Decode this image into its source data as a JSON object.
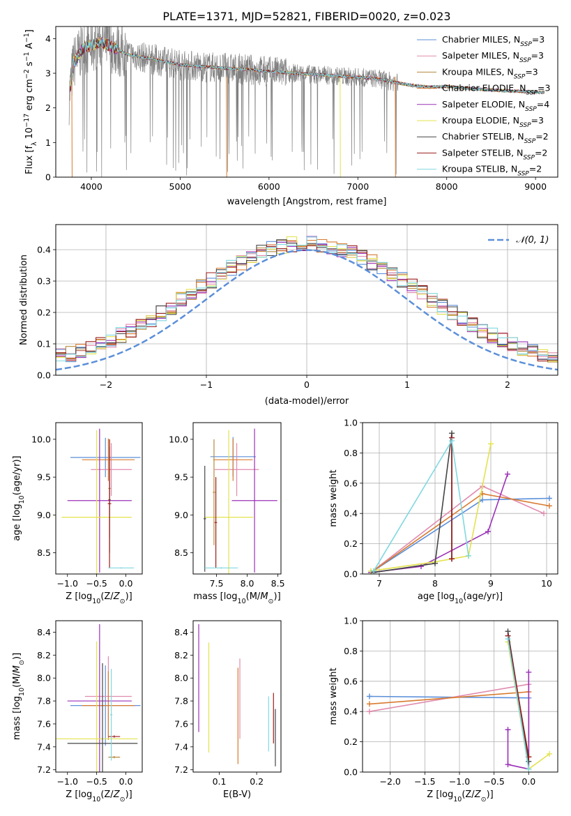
{
  "figure": {
    "title": "PLATE=1371, MJD=52821, FIBERID=0020, z=0.023"
  },
  "colors": {
    "Chabrier MILES": "#5b8fd9",
    "Salpeter MILES": "#e08aae",
    "Kroupa MILES": "#b58a3e",
    "Chabrier ELODIE": "#d87a2e",
    "Salpeter ELODIE": "#9b30b8",
    "Kroupa ELODIE": "#e3e24e",
    "Chabrier STELIB": "#444444",
    "Salpeter STELIB": "#9b1c1c",
    "Kroupa STELIB": "#7fd8e0",
    "data": "#808080",
    "normal_curve": "#5b8fd9"
  },
  "chart_data": [
    {
      "id": "spectrum",
      "type": "line",
      "xlabel": "wavelength [Angstrom, rest frame]",
      "ylabel": "Flux [f_λ 10^-17 erg cm^-2 s^-1 A^-1]",
      "xlim": [
        3600,
        9250
      ],
      "ylim": [
        0,
        4.35
      ],
      "xticks": [
        4000,
        5000,
        6000,
        7000,
        8000,
        9000
      ],
      "yticks": [
        0,
        1,
        2,
        3,
        4
      ],
      "legend_position": "top-right",
      "legend": [
        {
          "model": "Chabrier MILES",
          "nssp": "3"
        },
        {
          "model": "Salpeter MILES",
          "nssp": "3"
        },
        {
          "model": "Kroupa MILES",
          "nssp": "3"
        },
        {
          "model": "Chabrier ELODIE",
          "nssp": "3"
        },
        {
          "model": "Salpeter ELODIE",
          "nssp": "4"
        },
        {
          "model": "Kroupa ELODIE",
          "nssp": "3"
        },
        {
          "model": "Chabrier STELIB",
          "nssp": "2"
        },
        {
          "model": "Salpeter STELIB",
          "nssp": "2"
        },
        {
          "model": "Kroupa STELIB",
          "nssp": "2"
        }
      ],
      "continuum": {
        "x": [
          3750,
          3800,
          3900,
          4000,
          4100,
          4200,
          4400,
          4600,
          4800,
          5000,
          5200,
          5500,
          5800,
          6000,
          6300,
          6600,
          6900,
          7200,
          7400,
          7600,
          7800,
          8000,
          8300,
          8600,
          8800,
          9000,
          9100
        ],
        "y": [
          2.3,
          3.3,
          3.7,
          3.8,
          3.9,
          3.8,
          3.55,
          3.45,
          3.35,
          3.25,
          3.2,
          3.15,
          3.1,
          3.05,
          3.0,
          2.95,
          2.9,
          2.85,
          2.75,
          2.65,
          2.6,
          2.62,
          2.55,
          2.5,
          2.48,
          2.45,
          2.45
        ]
      }
    },
    {
      "id": "residuals",
      "type": "area",
      "xlabel": "(data-model)/error",
      "ylabel": "Normed distribution",
      "xlim": [
        -2.5,
        2.5
      ],
      "ylim": [
        0,
        0.48
      ],
      "xticks": [
        -2,
        -1,
        0,
        1,
        2
      ],
      "yticks": [
        0.0,
        0.1,
        0.2,
        0.3,
        0.4
      ],
      "grid": true,
      "legend_position": "top-right",
      "legend": "𝒩(0, 1)",
      "bin_width": 0.1,
      "normal": {
        "mean": 0,
        "sigma": 1
      }
    },
    {
      "id": "age-vs-z",
      "type": "scatter",
      "xlabel": "Z [log10(Z/Z⊙)]",
      "ylabel": "age [log10(age/yr)]",
      "xlim": [
        -1.2,
        0.28
      ],
      "ylim": [
        8.22,
        10.22
      ],
      "xticks": [
        -1.0,
        -0.5,
        0.0
      ],
      "yticks": [
        8.5,
        9.0,
        9.5,
        10.0
      ],
      "points": [
        {
          "model": "Chabrier MILES",
          "x": -0.35,
          "y": 9.76,
          "xerr": 0.6,
          "yerr": 0.26
        },
        {
          "model": "Salpeter MILES",
          "x": -0.25,
          "y": 9.6,
          "xerr": 0.35,
          "yerr": 0.35
        },
        {
          "model": "Chabrier ELODIE",
          "x": -0.3,
          "y": 9.73,
          "xerr": 0.45,
          "yerr": 0.28
        },
        {
          "model": "Salpeter ELODIE",
          "x": -0.45,
          "y": 9.19,
          "xerr": 0.55,
          "yerr": 0.95
        },
        {
          "model": "Kroupa ELODIE",
          "x": -0.5,
          "y": 8.97,
          "xerr": 0.6,
          "yerr": 1.15
        },
        {
          "model": "Kroupa MILES",
          "x": -0.28,
          "y": 9.35,
          "xerr": 0.02,
          "yerr": 0.65
        },
        {
          "model": "Chabrier STELIB",
          "x": -0.28,
          "y": 9.2,
          "xerr": 0.02,
          "yerr": 0.7
        },
        {
          "model": "Salpeter STELIB",
          "x": -0.28,
          "y": 9.15,
          "xerr": 0.03,
          "yerr": 0.85
        },
        {
          "model": "Kroupa STELIB",
          "x": -0.08,
          "y": 8.3,
          "xerr": 0.22,
          "yerr": 0.01
        }
      ]
    },
    {
      "id": "age-vs-mass",
      "type": "scatter",
      "xlabel": "mass [log10(M/M⊙)]",
      "ylabel": "",
      "xlim": [
        7.12,
        8.55
      ],
      "ylim": [
        8.22,
        10.22
      ],
      "xticks": [
        7.5,
        8.0,
        8.5
      ],
      "yticks": [
        8.5,
        9.0,
        9.5,
        10.0
      ],
      "points": [
        {
          "model": "Chabrier MILES",
          "x": 7.77,
          "y": 9.77,
          "xerr": 0.37,
          "yerr": 0.26
        },
        {
          "model": "Salpeter MILES",
          "x": 7.83,
          "y": 9.6,
          "xerr": 0.36,
          "yerr": 0.35
        },
        {
          "model": "Chabrier ELODIE",
          "x": 7.77,
          "y": 9.73,
          "xerr": 0.32,
          "yerr": 0.28
        },
        {
          "model": "Salpeter ELODIE",
          "x": 8.12,
          "y": 9.19,
          "xerr": 0.37,
          "yerr": 0.95
        },
        {
          "model": "Kroupa ELODIE",
          "x": 7.7,
          "y": 8.97,
          "xerr": 0.4,
          "yerr": 1.15
        },
        {
          "model": "Kroupa MILES",
          "x": 7.46,
          "y": 9.3,
          "xerr": 0.02,
          "yerr": 0.7
        },
        {
          "model": "Chabrier STELIB",
          "x": 7.31,
          "y": 8.95,
          "xerr": 0.02,
          "yerr": 0.7
        },
        {
          "model": "Salpeter STELIB",
          "x": 7.49,
          "y": 8.9,
          "xerr": 0.02,
          "yerr": 0.6
        },
        {
          "model": "Kroupa STELIB",
          "x": 7.58,
          "y": 8.3,
          "xerr": 0.27,
          "yerr": 0.01
        }
      ]
    },
    {
      "id": "weight-vs-age",
      "type": "line",
      "xlabel": "age [log10(age/yr)]",
      "ylabel": "mass weight",
      "xlim": [
        6.7,
        10.2
      ],
      "ylim": [
        0,
        1.0
      ],
      "xticks": [
        7,
        8,
        9,
        10
      ],
      "yticks": [
        0.0,
        0.2,
        0.4,
        0.6,
        0.8,
        1.0
      ],
      "grid": true,
      "series": [
        {
          "model": "Chabrier MILES",
          "x": [
            6.85,
            8.85,
            10.05
          ],
          "y": [
            0.01,
            0.49,
            0.5
          ]
        },
        {
          "model": "Salpeter MILES",
          "x": [
            6.85,
            8.85,
            9.95
          ],
          "y": [
            0.01,
            0.58,
            0.4
          ]
        },
        {
          "model": "Chabrier ELODIE",
          "x": [
            6.85,
            8.85,
            10.05
          ],
          "y": [
            0.01,
            0.53,
            0.45
          ]
        },
        {
          "model": "Salpeter ELODIE",
          "x": [
            6.85,
            7.75,
            8.95,
            9.3
          ],
          "y": [
            0.01,
            0.05,
            0.28,
            0.66
          ]
        },
        {
          "model": "Kroupa ELODIE",
          "x": [
            6.85,
            8.0,
            8.6,
            9.0
          ],
          "y": [
            0.02,
            0.08,
            0.12,
            0.86
          ]
        },
        {
          "model": "Chabrier STELIB",
          "x": [
            6.9,
            8.0,
            8.3,
            8.3
          ],
          "y": [
            0.01,
            0.07,
            0.93,
            0.1
          ]
        },
        {
          "model": "Salpeter STELIB",
          "x": [
            8.3,
            8.3
          ],
          "y": [
            0.9,
            0.1
          ]
        },
        {
          "model": "Kroupa STELIB",
          "x": [
            6.9,
            8.3,
            8.6
          ],
          "y": [
            0.02,
            0.88,
            0.12
          ]
        }
      ]
    },
    {
      "id": "mass-vs-z",
      "type": "scatter",
      "xlabel": "Z [log10(Z/Z⊙)]",
      "ylabel": "mass [log10(M/M⊙)]",
      "xlim": [
        -1.2,
        0.28
      ],
      "ylim": [
        7.18,
        8.5
      ],
      "xticks": [
        -1.0,
        -0.5,
        0.0
      ],
      "yticks": [
        7.2,
        7.4,
        7.6,
        7.8,
        8.0,
        8.2,
        8.4
      ],
      "points": [
        {
          "model": "Chabrier MILES",
          "x": -0.35,
          "y": 7.76,
          "xerr": 0.6,
          "yerr": 0.35
        },
        {
          "model": "Salpeter MILES",
          "x": -0.3,
          "y": 7.84,
          "xerr": 0.4,
          "yerr": 0.35
        },
        {
          "model": "Chabrier ELODIE",
          "x": -0.3,
          "y": 7.76,
          "xerr": 0.45,
          "yerr": 0.3
        },
        {
          "model": "Salpeter ELODIE",
          "x": -0.45,
          "y": 7.8,
          "xerr": 0.55,
          "yerr": 0.67
        },
        {
          "model": "Kroupa ELODIE",
          "x": -0.5,
          "y": 7.47,
          "xerr": 0.7,
          "yerr": 0.85
        },
        {
          "model": "Chabrier STELIB",
          "x": -0.4,
          "y": 7.43,
          "xerr": 0.6,
          "yerr": 0.7
        },
        {
          "model": "Salpeter STELIB",
          "x": -0.2,
          "y": 7.49,
          "xerr": 0.1,
          "yerr": 0.01
        },
        {
          "model": "Kroupa MILES",
          "x": -0.2,
          "y": 7.31,
          "xerr": 0.1,
          "yerr": 0.01
        },
        {
          "model": "Kroupa STELIB",
          "x": -0.25,
          "y": 7.68,
          "xerr": 0.02,
          "yerr": 0.4
        }
      ]
    },
    {
      "id": "mass-vs-ebv",
      "type": "scatter",
      "xlabel": "E(B-V)",
      "ylabel": "",
      "xlim": [
        0.03,
        0.265
      ],
      "ylim": [
        7.18,
        8.5
      ],
      "xticks": [
        0.1,
        0.2
      ],
      "yticks": [
        7.2,
        7.4,
        7.6,
        7.8,
        8.0,
        8.2,
        8.4
      ],
      "points": [
        {
          "model": "Salpeter ELODIE",
          "x": 0.045,
          "y": 8.0,
          "yerr": 0.47
        },
        {
          "model": "Kroupa ELODIE",
          "x": 0.072,
          "y": 7.83,
          "yerr": 0.48
        },
        {
          "model": "Chabrier ELODIE",
          "x": 0.15,
          "y": 7.67,
          "yerr": 0.42
        },
        {
          "model": "Salpeter MILES",
          "x": 0.155,
          "y": 7.82,
          "yerr": 0.35
        },
        {
          "model": "Kroupa STELIB",
          "x": 0.232,
          "y": 7.6,
          "yerr": 0.24
        },
        {
          "model": "Salpeter STELIB",
          "x": 0.245,
          "y": 7.65,
          "yerr": 0.22
        },
        {
          "model": "Chabrier STELIB",
          "x": 0.25,
          "y": 7.48,
          "yerr": 0.25
        }
      ]
    },
    {
      "id": "weight-vs-z",
      "type": "line",
      "xlabel": "Z [log10(Z/Z⊙)]",
      "ylabel": "mass weight",
      "xlim": [
        -2.4,
        0.42
      ],
      "ylim": [
        0,
        1.0
      ],
      "xticks": [
        -2.0,
        -1.5,
        -1.0,
        -0.5,
        0.0
      ],
      "yticks": [
        0.0,
        0.2,
        0.4,
        0.6,
        0.8,
        1.0
      ],
      "grid": true,
      "series": [
        {
          "model": "Chabrier MILES",
          "x": [
            -2.3,
            0.0,
            0.0
          ],
          "y": [
            0.5,
            0.49,
            0.1
          ]
        },
        {
          "model": "Salpeter MILES",
          "x": [
            -2.3,
            0.0,
            0.0
          ],
          "y": [
            0.4,
            0.58,
            0.1
          ]
        },
        {
          "model": "Chabrier ELODIE",
          "x": [
            -2.3,
            0.0,
            0.0
          ],
          "y": [
            0.45,
            0.53,
            0.1
          ]
        },
        {
          "model": "Salpeter ELODIE",
          "x": [
            -0.3,
            -0.3,
            0.0,
            0.0
          ],
          "y": [
            0.28,
            0.05,
            0.02,
            0.66
          ]
        },
        {
          "model": "Kroupa ELODIE",
          "x": [
            -0.3,
            0.0,
            0.3
          ],
          "y": [
            0.86,
            0.02,
            0.12
          ]
        },
        {
          "model": "Chabrier STELIB",
          "x": [
            -0.3,
            0.0
          ],
          "y": [
            0.93,
            0.07
          ]
        },
        {
          "model": "Salpeter STELIB",
          "x": [
            -0.3,
            0.0
          ],
          "y": [
            0.9,
            0.1
          ]
        },
        {
          "model": "Kroupa STELIB",
          "x": [
            -0.3,
            0.0
          ],
          "y": [
            0.88,
            0.02
          ]
        }
      ]
    }
  ]
}
